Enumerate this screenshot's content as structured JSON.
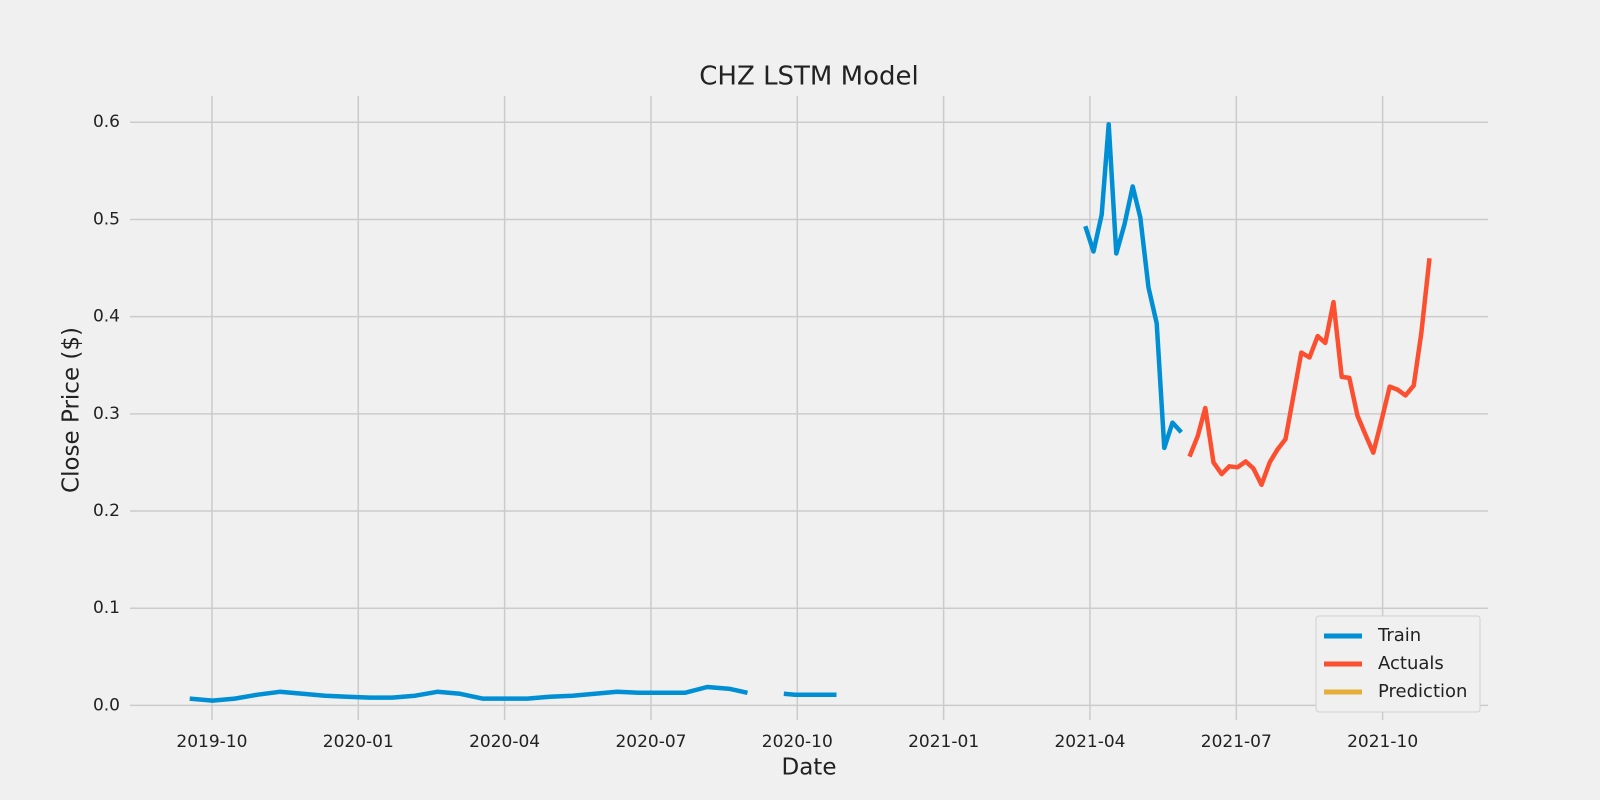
{
  "chart_data": {
    "type": "line",
    "title": "CHZ LSTM Model",
    "x_label": "Date",
    "y_label": "Close Price ($)",
    "xlim": [
      2019.61,
      2021.93
    ],
    "ylim": [
      -0.015,
      0.627
    ],
    "xticks": [
      {
        "value": 2019.75,
        "label": "2019-10"
      },
      {
        "value": 2020.0,
        "label": "2020-01"
      },
      {
        "value": 2020.25,
        "label": "2020-04"
      },
      {
        "value": 2020.5,
        "label": "2020-07"
      },
      {
        "value": 2020.75,
        "label": "2020-10"
      },
      {
        "value": 2021.0,
        "label": "2021-01"
      },
      {
        "value": 2021.25,
        "label": "2021-04"
      },
      {
        "value": 2021.5,
        "label": "2021-07"
      },
      {
        "value": 2021.75,
        "label": "2021-10"
      }
    ],
    "yticks": [
      {
        "value": 0,
        "label": "0.0"
      },
      0.1,
      0.2,
      0.3,
      0.4,
      0.5,
      0.6
    ],
    "grid": true,
    "legend": "lower right",
    "series": [
      {
        "name": "Train",
        "color": "#008fd5",
        "x": [
          2019.712,
          2019.751,
          2019.789,
          2019.828,
          2019.866,
          2019.905,
          2019.943,
          2019.981,
          2020.02,
          2020.058,
          2020.097,
          2020.135,
          2020.174,
          2020.212,
          2020.25,
          2020.289,
          2020.327,
          2020.366,
          2020.404,
          2020.442,
          2020.481,
          2020.519,
          2020.558,
          2020.596,
          2020.635,
          2020.665,
          2020.696,
          2020.727,
          2020.746,
          2020.766,
          2020.786,
          2020.817,
          2021.031,
          2021.242,
          2021.256,
          2021.27,
          2021.282,
          2021.295,
          2021.309,
          2021.323,
          2021.336,
          2021.35,
          2021.364,
          2021.377,
          2021.391,
          2021.406
        ],
        "values": [
          0.007,
          0.005,
          0.007,
          0.011,
          0.014,
          0.012,
          0.01,
          0.009,
          0.008,
          0.008,
          0.01,
          0.014,
          0.012,
          0.007,
          0.007,
          0.007,
          0.009,
          0.01,
          0.012,
          0.014,
          0.013,
          0.013,
          0.013,
          0.019,
          0.017,
          0.013,
          null,
          0.012,
          0.011,
          0.011,
          0.011,
          0.011,
          null,
          0.493,
          0.467,
          0.505,
          0.598,
          0.465,
          0.495,
          0.534,
          0.502,
          0.43,
          0.393,
          0.265,
          0.291,
          0.281
        ]
      },
      {
        "name": "Actuals",
        "color": "#fc4f30",
        "x": [
          2021.42,
          2021.434,
          2021.447,
          2021.461,
          2021.475,
          2021.488,
          2021.502,
          2021.516,
          2021.529,
          2021.543,
          2021.557,
          2021.57,
          2021.584,
          2021.598,
          2021.611,
          2021.625,
          2021.639,
          2021.652,
          2021.666,
          2021.68,
          2021.693,
          2021.707,
          2021.721,
          2021.734,
          2021.748,
          2021.762,
          2021.775,
          2021.789,
          2021.803,
          2021.816,
          2021.83
        ],
        "values": [
          0.256,
          0.277,
          0.306,
          0.25,
          0.238,
          0.246,
          0.245,
          0.251,
          0.244,
          0.227,
          0.25,
          0.263,
          0.274,
          0.32,
          0.363,
          0.358,
          0.38,
          0.373,
          0.415,
          0.338,
          0.337,
          0.298,
          0.278,
          0.26,
          0.293,
          0.328,
          0.325,
          0.319,
          0.329,
          0.383,
          0.46
        ]
      },
      {
        "name": "Prediction",
        "color": "#e5ae38",
        "x": [],
        "values": []
      }
    ]
  }
}
